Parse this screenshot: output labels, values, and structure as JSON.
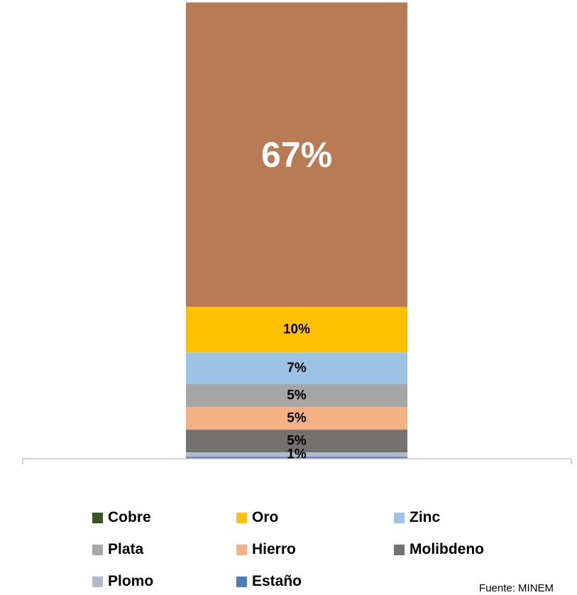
{
  "chart_data": {
    "type": "stacked_bar",
    "series": [
      {
        "name": "Estaño",
        "value": 0.4,
        "label": "",
        "color": "#4a7ebb",
        "label_color": "#000000"
      },
      {
        "name": "Plomo",
        "value": 1,
        "label": "1%",
        "color": "#b3b9cc",
        "label_color": "#000000"
      },
      {
        "name": "Molibdeno",
        "value": 5,
        "label": "5%",
        "color": "#767171",
        "label_color": "#000000"
      },
      {
        "name": "Hierro",
        "value": 5,
        "label": "5%",
        "color": "#f4b183",
        "label_color": "#000000"
      },
      {
        "name": "Plata",
        "value": 5,
        "label": "5%",
        "color": "#a6a6a6",
        "label_color": "#000000"
      },
      {
        "name": "Zinc",
        "value": 7,
        "label": "7%",
        "color": "#9dc3e6",
        "label_color": "#000000"
      },
      {
        "name": "Oro",
        "value": 10,
        "label": "10%",
        "color": "#ffc000",
        "label_color": "#000000"
      },
      {
        "name": "Cobre",
        "value": 67,
        "label": "67%",
        "color": "#b87b56",
        "label_color": "#ffffff"
      }
    ],
    "total": 100
  },
  "legend": [
    {
      "name": "Cobre",
      "color": "#375623"
    },
    {
      "name": "Oro",
      "color": "#ffc000"
    },
    {
      "name": "Zinc",
      "color": "#9dc3e6"
    },
    {
      "name": "Plata",
      "color": "#a6a6a6"
    },
    {
      "name": "Hierro",
      "color": "#f4b183"
    },
    {
      "name": "Molibdeno",
      "color": "#767171"
    },
    {
      "name": "Plomo",
      "color": "#b3b9cc"
    },
    {
      "name": "Estaño",
      "color": "#4a7ebb"
    }
  ],
  "source": "Fuente: MINEM"
}
